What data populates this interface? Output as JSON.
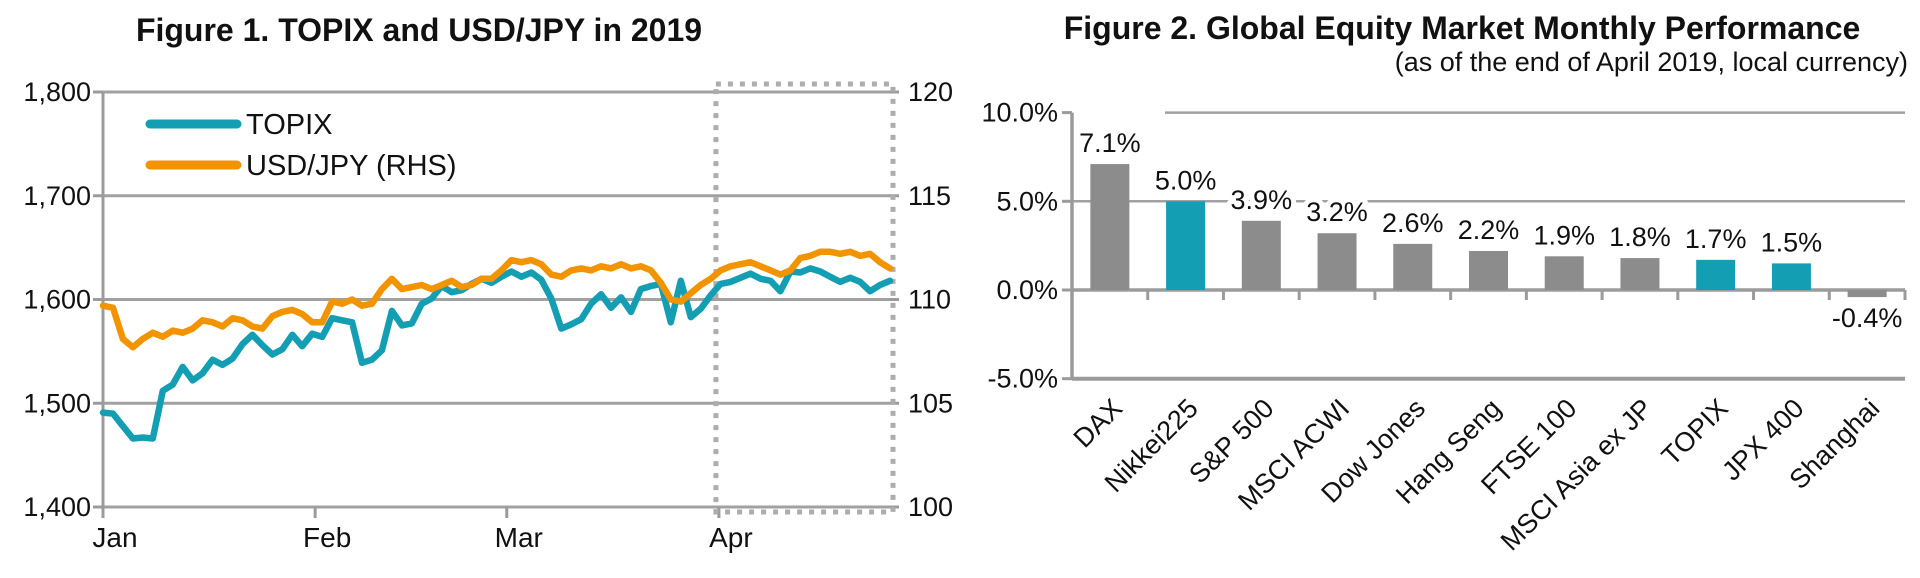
{
  "chart_data": [
    {
      "type": "line",
      "title": "Figure 1. TOPIX and USD/JPY in 2019",
      "x_axis": {
        "tick_labels": [
          "Jan",
          "Feb",
          "Mar",
          "Apr"
        ],
        "tick_day_positions": [
          0,
          31,
          59,
          90
        ],
        "total_days": 115
      },
      "left_axis": {
        "min": 1400,
        "max": 1800,
        "step": 100,
        "tick_labels": [
          "1,800",
          "1,700",
          "1,600",
          "1,500",
          "1,400"
        ]
      },
      "right_axis": {
        "min": 100,
        "max": 120,
        "step": 5,
        "tick_labels": [
          "120",
          "115",
          "110",
          "105",
          "100"
        ]
      },
      "legend_position": "top-left-inside",
      "grid": true,
      "highlight_box": {
        "from_day": 90,
        "to_day": 115,
        "style": "dotted",
        "color": "#ADADAD"
      },
      "series": [
        {
          "name": "TOPIX",
          "axis": "left",
          "color": "#149EB4",
          "values": [
            1491,
            1490,
            1478,
            1466,
            1467,
            1466,
            1512,
            1518,
            1535,
            1522,
            1529,
            1542,
            1537,
            1543,
            1557,
            1566,
            1556,
            1547,
            1552,
            1566,
            1555,
            1567,
            1564,
            1582,
            1580,
            1578,
            1539,
            1542,
            1551,
            1589,
            1575,
            1577,
            1596,
            1601,
            1613,
            1607,
            1609,
            1615,
            1620,
            1616,
            1622,
            1627,
            1622,
            1626,
            1619,
            1601,
            1572,
            1576,
            1581,
            1596,
            1605,
            1592,
            1602,
            1588,
            1610,
            1613,
            1615,
            1578,
            1618,
            1583,
            1591,
            1604,
            1615,
            1617,
            1621,
            1625,
            1620,
            1618,
            1608,
            1627,
            1626,
            1630,
            1627,
            1622,
            1617,
            1621,
            1617,
            1608,
            1614,
            1618
          ]
        },
        {
          "name": "USD/JPY (RHS)",
          "axis": "right",
          "color": "#F29400",
          "values": [
            109.7,
            109.6,
            108.1,
            107.7,
            108.1,
            108.4,
            108.2,
            108.5,
            108.4,
            108.6,
            109.0,
            108.9,
            108.7,
            109.1,
            109.0,
            108.7,
            108.6,
            109.2,
            109.4,
            109.5,
            109.3,
            108.9,
            108.9,
            109.9,
            109.8,
            110.0,
            109.7,
            109.8,
            110.5,
            111.0,
            110.5,
            110.6,
            110.7,
            110.5,
            110.7,
            110.9,
            110.6,
            110.7,
            111.0,
            111.0,
            111.4,
            111.9,
            111.8,
            111.9,
            111.7,
            111.2,
            111.1,
            111.4,
            111.5,
            111.4,
            111.6,
            111.5,
            111.7,
            111.5,
            111.6,
            111.4,
            110.8,
            110.0,
            109.9,
            110.3,
            110.7,
            111.0,
            111.4,
            111.6,
            111.7,
            111.8,
            111.6,
            111.4,
            111.2,
            111.4,
            112.0,
            112.1,
            112.3,
            112.3,
            112.2,
            112.3,
            112.1,
            112.2,
            111.8,
            111.5
          ]
        }
      ]
    },
    {
      "type": "bar",
      "title": "Figure 2. Global Equity Market Monthly Performance",
      "subtitle": "(as of the end of April 2019, local currency)",
      "categories": [
        "DAX",
        "Nikkei225",
        "S&P 500",
        "MSCI ACWI",
        "Dow Jones",
        "Hang Seng",
        "FTSE 100",
        "MSCI Asia ex JP",
        "TOPIX",
        "JPX 400",
        "Shanghai"
      ],
      "values": [
        7.1,
        5.0,
        3.9,
        3.2,
        2.6,
        2.2,
        1.9,
        1.8,
        1.7,
        1.5,
        -0.4
      ],
      "value_labels": [
        "7.1%",
        "5.0%",
        "3.9%",
        "3.2%",
        "2.6%",
        "2.2%",
        "1.9%",
        "1.8%",
        "1.7%",
        "1.5%",
        "-0.4%"
      ],
      "highlighted": [
        false,
        true,
        false,
        false,
        false,
        false,
        false,
        false,
        true,
        true,
        false
      ],
      "y_axis": {
        "min": -5,
        "max": 10,
        "step": 5,
        "tick_labels": [
          "10.0%",
          "5.0%",
          "0.0%",
          "-5.0%"
        ]
      },
      "grid": true,
      "xlabel": "",
      "ylabel": ""
    }
  ],
  "colors": {
    "teal": "#149EB4",
    "orange": "#F29400",
    "bar_gray": "#8C8C8C",
    "gridline": "#A1A1A1",
    "axis": "#9B9B9B",
    "highlight_box": "#ADADAD",
    "text": "#111111"
  }
}
